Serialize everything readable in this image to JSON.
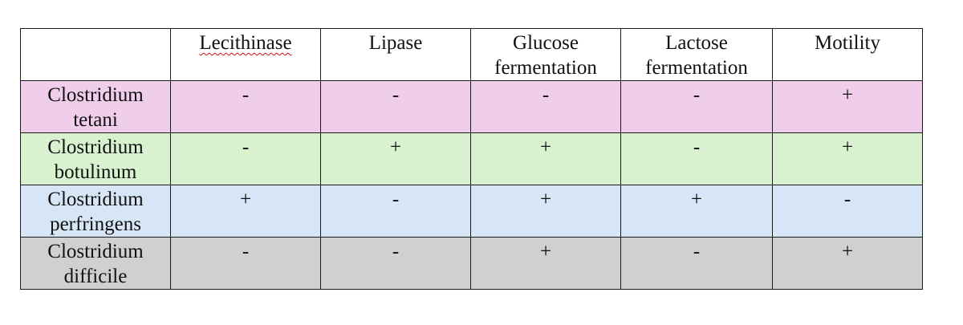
{
  "table": {
    "headers": [
      "",
      "Lecithinase",
      "Lipase",
      "Glucose fermentation",
      "Lactose fermentation",
      "Motility"
    ],
    "rows": [
      {
        "organism": "Clostridium tetani",
        "color": "#f0cdea",
        "values": [
          "-",
          "-",
          "-",
          "-",
          "+"
        ]
      },
      {
        "organism": "Clostridium botulinum",
        "color": "#d8f2d0",
        "values": [
          "-",
          "+",
          "+",
          "-",
          "+"
        ]
      },
      {
        "organism": "Clostridium perfringens",
        "color": "#d6e6f6",
        "values": [
          "+",
          "-",
          "+",
          "+",
          "-"
        ]
      },
      {
        "organism": "Clostridium difficile",
        "color": "#d0d0d0",
        "values": [
          "-",
          "-",
          "+",
          "-",
          "+"
        ]
      }
    ]
  }
}
